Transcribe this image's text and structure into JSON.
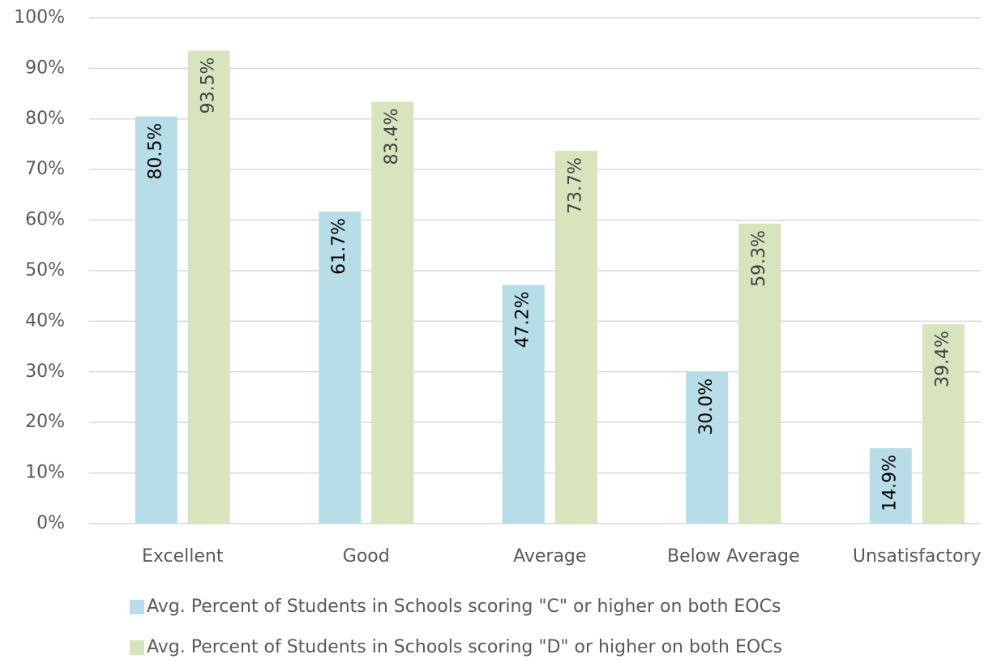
{
  "chart_data": {
    "type": "bar",
    "categories": [
      "Excellent",
      "Good",
      "Average",
      "Below Average",
      "Unsatisfactory"
    ],
    "series": [
      {
        "name": "Avg. Percent of Students in Schools scoring \"C\" or higher on both EOCs",
        "color": "#b7dde8",
        "values": [
          80.5,
          61.7,
          47.2,
          30.0,
          14.9
        ],
        "value_labels": [
          "80.5%",
          "61.7%",
          "47.2%",
          "30.0%",
          "14.9%"
        ]
      },
      {
        "name": "Avg. Percent of Students in Schools scoring \"D\" or higher on both EOCs",
        "color": "#d7e4bd",
        "values": [
          93.5,
          83.4,
          73.7,
          59.3,
          39.4
        ],
        "value_labels": [
          "93.5%",
          "83.4%",
          "73.7%",
          "59.3%",
          "39.4%"
        ]
      }
    ],
    "ylim": [
      0,
      100
    ],
    "yticks": [
      {
        "value": 0,
        "label": "0%"
      },
      {
        "value": 10,
        "label": "10%"
      },
      {
        "value": 20,
        "label": "20%"
      },
      {
        "value": 30,
        "label": "30%"
      },
      {
        "value": 40,
        "label": "40%"
      },
      {
        "value": 50,
        "label": "50%"
      },
      {
        "value": 60,
        "label": "60%"
      },
      {
        "value": 70,
        "label": "70%"
      },
      {
        "value": 80,
        "label": "80%"
      },
      {
        "value": 90,
        "label": "90%"
      },
      {
        "value": 100,
        "label": "100%"
      }
    ],
    "grid": true,
    "legend": "bottom"
  }
}
